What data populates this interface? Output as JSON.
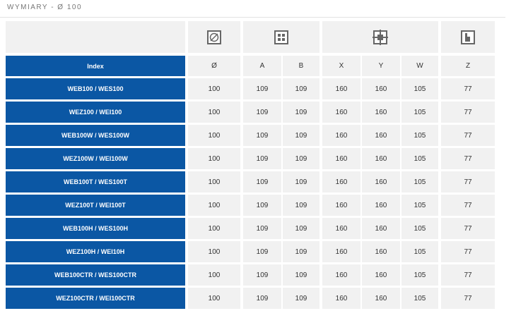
{
  "header": {
    "title": "WYMIARY -  Ø 100"
  },
  "table": {
    "columns": [
      "Index",
      "Ø",
      "A",
      "B",
      "X",
      "Y",
      "W",
      "Z"
    ],
    "rows": [
      [
        "WEB100 / WES100",
        100,
        109,
        109,
        160,
        160,
        105,
        77
      ],
      [
        "WEZ100 / WEI100",
        100,
        109,
        109,
        160,
        160,
        105,
        77
      ],
      [
        "WEB100W / WES100W",
        100,
        109,
        109,
        160,
        160,
        105,
        77
      ],
      [
        "WEZ100W / WEI100W",
        100,
        109,
        109,
        160,
        160,
        105,
        77
      ],
      [
        "WEB100T / WES100T",
        100,
        109,
        109,
        160,
        160,
        105,
        77
      ],
      [
        "WEZ100T / WEI100T",
        100,
        109,
        109,
        160,
        160,
        105,
        77
      ],
      [
        "WEB100H / WES100H",
        100,
        109,
        109,
        160,
        160,
        105,
        77
      ],
      [
        "WEZ100H / WEI10H",
        100,
        109,
        109,
        160,
        160,
        105,
        77
      ],
      [
        "WEB100CTR / WES100CTR",
        100,
        109,
        109,
        160,
        160,
        105,
        77
      ],
      [
        "WEZ100CTR / WEI100CTR",
        100,
        109,
        109,
        160,
        160,
        105,
        77
      ]
    ]
  }
}
